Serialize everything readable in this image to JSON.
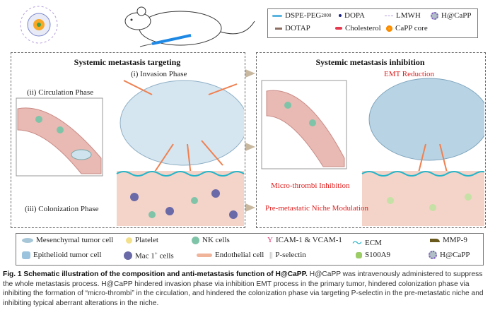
{
  "top_legend": [
    {
      "label": "DSPE-PEG",
      "sub": "2000",
      "icon": "dspe-peg-icon",
      "color": "#5ab4e0"
    },
    {
      "label": "DOPA",
      "icon": "dopa-icon",
      "color": "#1a237e"
    },
    {
      "label": "LMWH",
      "icon": "lmwh-icon",
      "color": "#b39ddb"
    },
    {
      "label": "H@CaPP",
      "icon": "hcapp-icon",
      "color": "#7e57c2"
    },
    {
      "label": "DOTAP",
      "icon": "dotap-icon",
      "color": "#8d6e63"
    },
    {
      "label": "Cholesterol",
      "icon": "cholesterol-icon",
      "color": "#e53950"
    },
    {
      "label": "CaPP core",
      "icon": "capp-core-icon",
      "color": "#f9a825"
    }
  ],
  "left_panel": {
    "title": "Systemic metastasis targeting",
    "circulation": "(ii) Circulation Phase",
    "invasion": "(i) Invasion Phase",
    "colonization": "(iii) Colonization Phase"
  },
  "right_panel": {
    "title": "Systemic metastasis inhibition",
    "emt": "EMT Reduction",
    "thrombi": "Micro-thrombi Inhibition",
    "niche": "Pre-metastatic Niche Modulation"
  },
  "bottom_legend": [
    {
      "label": "Mesenchymal tumor  cell",
      "icon": "mesenchymal-cell-icon",
      "color": "#a7c7d9"
    },
    {
      "label": "Platelet",
      "icon": "platelet-icon",
      "color": "#f3e08a"
    },
    {
      "label": "NK cells",
      "icon": "nk-cell-icon",
      "color": "#7fc4a8"
    },
    {
      "label": "ICAM-1 & VCAM-1",
      "icon": "icam-icon",
      "color": "#e0306a"
    },
    {
      "label": "ECM",
      "icon": "ecm-icon",
      "color": "#22b5c9"
    },
    {
      "label": "MMP-9",
      "icon": "mmp9-icon",
      "color": "#6b5a1e"
    },
    {
      "label": "Epithelioid tumor cell",
      "icon": "epithelioid-cell-icon",
      "color": "#9cc3dd"
    },
    {
      "label": "Mac 1",
      "sup": "+",
      "suffix": " cells",
      "icon": "mac1-cell-icon",
      "color": "#6a6aa8"
    },
    {
      "label": "Endothelial cell",
      "icon": "endothelial-cell-icon",
      "color": "#f0b49a"
    },
    {
      "label": "P-selectin",
      "icon": "p-selectin-icon",
      "color": "#888"
    },
    {
      "label": "S100A9",
      "icon": "s100a9-icon",
      "color": "#9ccc65"
    },
    {
      "label": "H@CaPP",
      "icon": "hcapp-icon",
      "color": "#7e57c2"
    }
  ],
  "caption": {
    "bold": "Fig. 1 Schematic illustration of the composition and anti-metastasis function of H@CaPP.",
    "text": " H@CaPP was intravenously administered to suppress the whole metastasis process. H@CaPP hindered invasion phase via inhibition EMT process in the primary tumor, hindered colonization phase via inhibiting the formation of “micro-thrombi” in the circulation, and hindered the colonization phase via targeting P-selectin in the pre-metastatic niche and inhibiting typical aberrant alterations in the niche."
  }
}
